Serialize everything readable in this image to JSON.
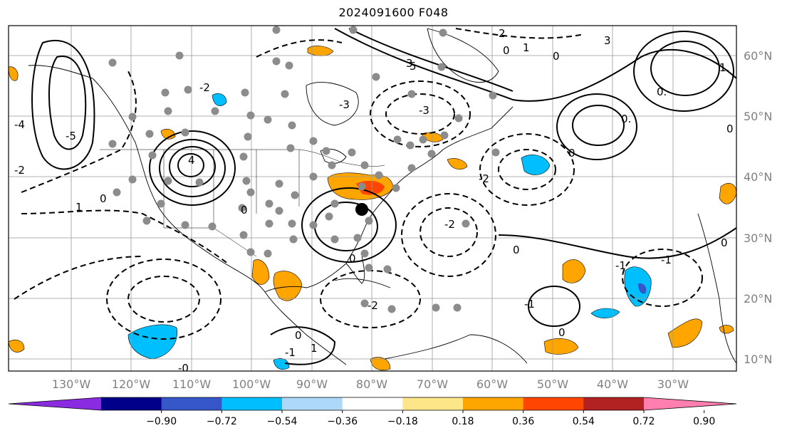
{
  "title": "2024091600 F048",
  "map": {
    "projection": "cylindrical lat-lon",
    "lon_range": [
      -140,
      -20
    ],
    "lat_range": [
      7,
      65
    ],
    "lon_ticks": [
      "130°W",
      "120°W",
      "110°W",
      "100°W",
      "90°W",
      "80°W",
      "70°W",
      "60°W",
      "50°W",
      "40°W",
      "30°W"
    ],
    "lat_ticks": [
      "60°N",
      "50°N",
      "40°N",
      "30°N",
      "20°N",
      "10°N"
    ],
    "grid": true,
    "contour_labels": [
      "1",
      "0",
      "-1",
      "-2",
      "-3",
      "-4",
      "-5",
      "2",
      "3",
      "4",
      "5",
      "0.",
      "1.",
      "2.",
      "-0"
    ],
    "station_marker": "large-black-dot",
    "observation_points": "gray dots over North America"
  },
  "colorbar": {
    "ticks": [
      "−0.90",
      "−0.72",
      "−0.54",
      "−0.36",
      "−0.18",
      "0.18",
      "0.36",
      "0.54",
      "0.72",
      "0.90"
    ],
    "colors": [
      "#8a2be2",
      "#00008b",
      "#3557c9",
      "#00bfff",
      "#add8f8",
      "#ffffff",
      "#fde68a",
      "#ffa500",
      "#ff4500",
      "#b22222",
      "#ff80b0"
    ],
    "extend": "both"
  }
}
